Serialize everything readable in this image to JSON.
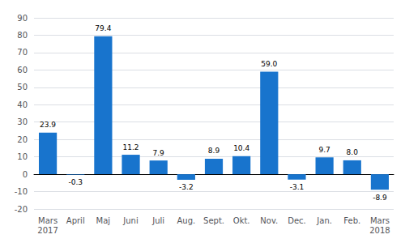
{
  "chart_data": {
    "type": "bar",
    "categories": [
      "Mars\n2017",
      "April",
      "Maj",
      "Juni",
      "Juli",
      "Aug.",
      "Sept.",
      "Okt.",
      "Nov.",
      "Dec.",
      "Jan.",
      "Feb.",
      "Mars\n2018"
    ],
    "values": [
      23.9,
      -0.3,
      79.4,
      11.2,
      7.9,
      -3.2,
      8.9,
      10.4,
      59.0,
      -3.1,
      9.7,
      8.0,
      -8.9
    ],
    "value_labels": [
      "23.9",
      "-0.3",
      "79.4",
      "11.2",
      "7.9",
      "-3.2",
      "8.9",
      "10.4",
      "59.0",
      "-3.1",
      "9.7",
      "8.0",
      "-8.9"
    ],
    "color": "#1874CD",
    "ylim": [
      -20,
      90
    ],
    "yticks": [
      -20,
      -10,
      0,
      10,
      20,
      30,
      40,
      50,
      60,
      70,
      80,
      90
    ],
    "grid": true,
    "data_labels": true
  }
}
